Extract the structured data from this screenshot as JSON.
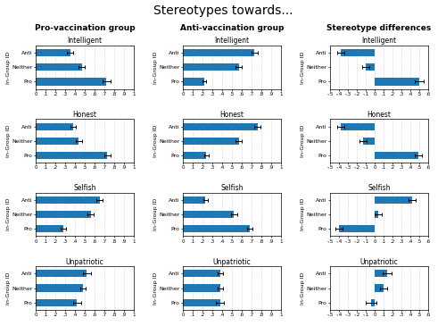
{
  "title": "Stereotypes towards...",
  "annotations": [
    "Pro-vaccination group",
    "Anti-vaccination group",
    "Stereotype differences"
  ],
  "chart_data": [
    {
      "type": "bar",
      "orientation": "horizontal",
      "title": "Intelligent",
      "ylabel": "In-Group ID",
      "categories": [
        "Anti",
        "Neither",
        "Pro"
      ],
      "values": [
        0.35,
        0.47,
        0.72
      ],
      "errors": [
        0.03,
        0.03,
        0.04
      ],
      "xlim": [
        0,
        1
      ],
      "xticks": [
        0,
        {
          "value": 0.1,
          "label": ".1"
        },
        {
          "value": 0.2,
          "label": ".2"
        },
        {
          "value": 0.3,
          "label": ".3"
        },
        {
          "value": 0.4,
          "label": ".4"
        },
        {
          "value": 0.5,
          "label": ".5"
        },
        {
          "value": 0.6,
          "label": ".6"
        },
        {
          "value": 0.7,
          "label": ".7"
        },
        {
          "value": 0.8,
          "label": ".8"
        },
        {
          "value": 0.9,
          "label": ".9"
        },
        1
      ],
      "grid": true
    },
    {
      "type": "bar",
      "orientation": "horizontal",
      "title": "Intelligent",
      "ylabel": "In-Group ID",
      "categories": [
        "Anti",
        "Neither",
        "Pro"
      ],
      "values": [
        0.73,
        0.57,
        0.22
      ],
      "errors": [
        0.03,
        0.03,
        0.02
      ],
      "xlim": [
        0,
        1
      ],
      "xticks": [
        0,
        {
          "value": 0.1,
          "label": ".1"
        },
        {
          "value": 0.2,
          "label": ".2"
        },
        {
          "value": 0.3,
          "label": ".3"
        },
        {
          "value": 0.4,
          "label": ".4"
        },
        {
          "value": 0.5,
          "label": ".5"
        },
        {
          "value": 0.6,
          "label": ".6"
        },
        {
          "value": 0.7,
          "label": ".7"
        },
        {
          "value": 0.8,
          "label": ".8"
        },
        {
          "value": 0.9,
          "label": ".9"
        },
        1
      ],
      "grid": true
    },
    {
      "type": "bar",
      "orientation": "horizontal",
      "title": "Intelligent",
      "ylabel": "In-Group ID",
      "categories": [
        "Anti",
        "Neither",
        "Pro"
      ],
      "values": [
        -0.38,
        -0.1,
        0.5
      ],
      "errors": [
        0.04,
        0.04,
        0.05
      ],
      "xlim": [
        -0.5,
        0.6
      ],
      "xticks": [
        {
          "value": -0.5,
          "label": "-.5"
        },
        {
          "value": -0.4,
          "label": "-.4"
        },
        {
          "value": -0.3,
          "label": "-.3"
        },
        {
          "value": -0.2,
          "label": "-.2"
        },
        {
          "value": -0.1,
          "label": "-.1"
        },
        0,
        {
          "value": 0.1,
          "label": ".1"
        },
        {
          "value": 0.2,
          "label": ".2"
        },
        {
          "value": 0.3,
          "label": ".3"
        },
        {
          "value": 0.4,
          "label": ".4"
        },
        {
          "value": 0.5,
          "label": ".5"
        },
        {
          "value": 0.6,
          "label": ".6"
        }
      ],
      "grid": true
    },
    {
      "type": "bar",
      "orientation": "horizontal",
      "title": "Honest",
      "ylabel": "In-Group ID",
      "categories": [
        "Anti",
        "Neither",
        "Pro"
      ],
      "values": [
        0.38,
        0.44,
        0.73
      ],
      "errors": [
        0.03,
        0.03,
        0.03
      ],
      "xlim": [
        0,
        1
      ],
      "xticks": [
        0,
        {
          "value": 0.1,
          "label": ".1"
        },
        {
          "value": 0.2,
          "label": ".2"
        },
        {
          "value": 0.3,
          "label": ".3"
        },
        {
          "value": 0.4,
          "label": ".4"
        },
        {
          "value": 0.5,
          "label": ".5"
        },
        {
          "value": 0.6,
          "label": ".6"
        },
        {
          "value": 0.7,
          "label": ".7"
        },
        {
          "value": 0.8,
          "label": ".8"
        },
        {
          "value": 0.9,
          "label": ".9"
        },
        1
      ],
      "grid": true
    },
    {
      "type": "bar",
      "orientation": "horizontal",
      "title": "Honest",
      "ylabel": "In-Group ID",
      "categories": [
        "Anti",
        "Neither",
        "Pro"
      ],
      "values": [
        0.76,
        0.57,
        0.24
      ],
      "errors": [
        0.03,
        0.03,
        0.02
      ],
      "xlim": [
        0,
        1
      ],
      "xticks": [
        0,
        {
          "value": 0.1,
          "label": ".1"
        },
        {
          "value": 0.2,
          "label": ".2"
        },
        {
          "value": 0.3,
          "label": ".3"
        },
        {
          "value": 0.4,
          "label": ".4"
        },
        {
          "value": 0.5,
          "label": ".5"
        },
        {
          "value": 0.6,
          "label": ".6"
        },
        {
          "value": 0.7,
          "label": ".7"
        },
        {
          "value": 0.8,
          "label": ".8"
        },
        {
          "value": 0.9,
          "label": ".9"
        },
        1
      ],
      "grid": true
    },
    {
      "type": "bar",
      "orientation": "horizontal",
      "title": "Honest",
      "ylabel": "In-Group ID",
      "categories": [
        "Anti",
        "Neither",
        "Pro"
      ],
      "values": [
        -0.38,
        -0.13,
        0.49
      ],
      "errors": [
        0.04,
        0.04,
        0.04
      ],
      "xlim": [
        -0.5,
        0.6
      ],
      "xticks": [
        {
          "value": -0.5,
          "label": "-.5"
        },
        {
          "value": -0.4,
          "label": "-.4"
        },
        {
          "value": -0.3,
          "label": "-.3"
        },
        {
          "value": -0.2,
          "label": "-.2"
        },
        {
          "value": -0.1,
          "label": "-.1"
        },
        0,
        {
          "value": 0.1,
          "label": ".1"
        },
        {
          "value": 0.2,
          "label": ".2"
        },
        {
          "value": 0.3,
          "label": ".3"
        },
        {
          "value": 0.4,
          "label": ".4"
        },
        {
          "value": 0.5,
          "label": ".5"
        },
        {
          "value": 0.6,
          "label": ".6"
        }
      ],
      "grid": true
    },
    {
      "type": "bar",
      "orientation": "horizontal",
      "title": "Selfish",
      "ylabel": "In-Group ID",
      "categories": [
        "Anti",
        "Neither",
        "Pro"
      ],
      "values": [
        0.65,
        0.56,
        0.28
      ],
      "errors": [
        0.03,
        0.03,
        0.03
      ],
      "xlim": [
        0,
        1
      ],
      "xticks": [
        0,
        {
          "value": 0.1,
          "label": ".1"
        },
        {
          "value": 0.2,
          "label": ".2"
        },
        {
          "value": 0.3,
          "label": ".3"
        },
        {
          "value": 0.4,
          "label": ".4"
        },
        {
          "value": 0.5,
          "label": ".5"
        },
        {
          "value": 0.6,
          "label": ".6"
        },
        {
          "value": 0.7,
          "label": ".7"
        },
        {
          "value": 0.8,
          "label": ".8"
        },
        {
          "value": 0.9,
          "label": ".9"
        },
        1
      ],
      "grid": true
    },
    {
      "type": "bar",
      "orientation": "horizontal",
      "title": "Selfish",
      "ylabel": "In-Group ID",
      "categories": [
        "Anti",
        "Neither",
        "Pro"
      ],
      "values": [
        0.23,
        0.52,
        0.68
      ],
      "errors": [
        0.02,
        0.03,
        0.03
      ],
      "xlim": [
        0,
        1
      ],
      "xticks": [
        0,
        {
          "value": 0.1,
          "label": ".1"
        },
        {
          "value": 0.2,
          "label": ".2"
        },
        {
          "value": 0.3,
          "label": ".3"
        },
        {
          "value": 0.4,
          "label": ".4"
        },
        {
          "value": 0.5,
          "label": ".5"
        },
        {
          "value": 0.6,
          "label": ".6"
        },
        {
          "value": 0.7,
          "label": ".7"
        },
        {
          "value": 0.8,
          "label": ".8"
        },
        {
          "value": 0.9,
          "label": ".9"
        },
        1
      ],
      "grid": true
    },
    {
      "type": "bar",
      "orientation": "horizontal",
      "title": "Selfish",
      "ylabel": "In-Group ID",
      "categories": [
        "Anti",
        "Neither",
        "Pro"
      ],
      "values": [
        0.42,
        0.04,
        -0.4
      ],
      "errors": [
        0.04,
        0.04,
        0.04
      ],
      "xlim": [
        -0.5,
        0.6
      ],
      "xticks": [
        {
          "value": -0.5,
          "label": "-.5"
        },
        {
          "value": -0.4,
          "label": "-.4"
        },
        {
          "value": -0.3,
          "label": "-.3"
        },
        {
          "value": -0.2,
          "label": "-.2"
        },
        {
          "value": -0.1,
          "label": "-.1"
        },
        0,
        {
          "value": 0.1,
          "label": ".1"
        },
        {
          "value": 0.2,
          "label": ".2"
        },
        {
          "value": 0.3,
          "label": ".3"
        },
        {
          "value": 0.4,
          "label": ".4"
        },
        {
          "value": 0.5,
          "label": ".5"
        },
        {
          "value": 0.6,
          "label": ".6"
        }
      ],
      "grid": true
    },
    {
      "type": "bar",
      "orientation": "horizontal",
      "title": "Unpatriotic",
      "ylabel": "In-Group ID",
      "categories": [
        "Anti",
        "Neither",
        "Pro"
      ],
      "values": [
        0.52,
        0.48,
        0.42
      ],
      "errors": [
        0.04,
        0.03,
        0.04
      ],
      "xlim": [
        0,
        1
      ],
      "xticks": [
        0,
        {
          "value": 0.1,
          "label": ".1"
        },
        {
          "value": 0.2,
          "label": ".2"
        },
        {
          "value": 0.3,
          "label": ".3"
        },
        {
          "value": 0.4,
          "label": ".4"
        },
        {
          "value": 0.5,
          "label": ".5"
        },
        {
          "value": 0.6,
          "label": ".6"
        },
        {
          "value": 0.7,
          "label": ".7"
        },
        {
          "value": 0.8,
          "label": ".8"
        },
        {
          "value": 0.9,
          "label": ".9"
        },
        1
      ],
      "grid": true
    },
    {
      "type": "bar",
      "orientation": "horizontal",
      "title": "Unpatriotic",
      "ylabel": "In-Group ID",
      "categories": [
        "Anti",
        "Neither",
        "Pro"
      ],
      "values": [
        0.38,
        0.38,
        0.38
      ],
      "errors": [
        0.03,
        0.03,
        0.04
      ],
      "xlim": [
        0,
        1
      ],
      "xticks": [
        0,
        {
          "value": 0.1,
          "label": ".1"
        },
        {
          "value": 0.2,
          "label": ".2"
        },
        {
          "value": 0.3,
          "label": ".3"
        },
        {
          "value": 0.4,
          "label": ".4"
        },
        {
          "value": 0.5,
          "label": ".5"
        },
        {
          "value": 0.6,
          "label": ".6"
        },
        {
          "value": 0.7,
          "label": ".7"
        },
        {
          "value": 0.8,
          "label": ".8"
        },
        {
          "value": 0.9,
          "label": ".9"
        },
        1
      ],
      "grid": true
    },
    {
      "type": "bar",
      "orientation": "horizontal",
      "title": "Unpatriotic",
      "ylabel": "In-Group ID",
      "categories": [
        "Anti",
        "Neither",
        "Pro"
      ],
      "values": [
        0.14,
        0.1,
        -0.04
      ],
      "errors": [
        0.05,
        0.04,
        0.06
      ],
      "xlim": [
        -0.5,
        0.6
      ],
      "xticks": [
        {
          "value": -0.5,
          "label": "-.5"
        },
        {
          "value": -0.4,
          "label": "-.4"
        },
        {
          "value": -0.3,
          "label": "-.3"
        },
        {
          "value": -0.2,
          "label": "-.2"
        },
        {
          "value": -0.1,
          "label": "-.1"
        },
        0,
        {
          "value": 0.1,
          "label": ".1"
        },
        {
          "value": 0.2,
          "label": ".2"
        },
        {
          "value": 0.3,
          "label": ".3"
        },
        {
          "value": 0.4,
          "label": ".4"
        },
        {
          "value": 0.5,
          "label": ".5"
        },
        {
          "value": 0.6,
          "label": ".6"
        }
      ],
      "grid": true
    }
  ]
}
